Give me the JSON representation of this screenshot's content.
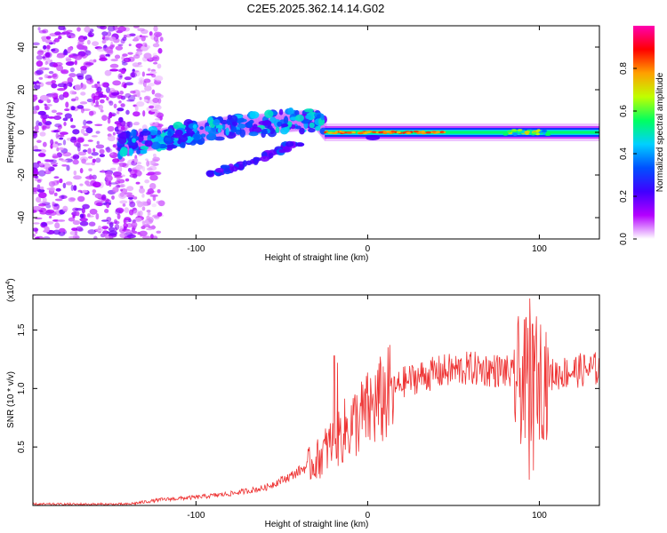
{
  "page_title": "C2E5.2025.362.14.14.G02",
  "chart_data": [
    {
      "type": "heatmap",
      "title": "C2E5.2025.362.14.14.G02",
      "xlabel": "Height of straight line (km)",
      "ylabel": "Frequency (Hz)",
      "xlim": [
        -195,
        135
      ],
      "ylim": [
        -50,
        50
      ],
      "x_ticks": [
        {
          "value": -100,
          "label": "-100"
        },
        {
          "value": 0,
          "label": "0"
        },
        {
          "value": 100,
          "label": "100"
        }
      ],
      "y_ticks": [
        {
          "value": -40,
          "label": "-40"
        },
        {
          "value": -20,
          "label": "-20"
        },
        {
          "value": 0,
          "label": "0"
        },
        {
          "value": 20,
          "label": "20"
        },
        {
          "value": 40,
          "label": "40"
        }
      ],
      "colorbar": {
        "label": "Normalized spectral amplitude",
        "range": [
          0,
          1
        ],
        "ticks": [
          {
            "value": 0.0,
            "label": "0.0"
          },
          {
            "value": 0.2,
            "label": "0.2"
          },
          {
            "value": 0.4,
            "label": "0.4"
          },
          {
            "value": 0.6,
            "label": "0.6"
          },
          {
            "value": 0.8,
            "label": "0.8"
          }
        ],
        "colors": [
          "#ffffff",
          "#b400ff",
          "#4000ff",
          "#0050ff",
          "#00d0ff",
          "#00ff60",
          "#c0ff00",
          "#ffa000",
          "#ff0000",
          "#ff00b0"
        ]
      },
      "features": {
        "noise_region_x": [
          -195,
          -125
        ],
        "main_branch": [
          [
            -145,
            -6
          ],
          [
            -120,
            -3
          ],
          [
            -100,
            0
          ],
          [
            -80,
            3
          ],
          [
            -60,
            4
          ],
          [
            -45,
            5
          ],
          [
            -30,
            6
          ],
          [
            -25,
            1
          ]
        ],
        "lower_branch": [
          [
            -95,
            -20
          ],
          [
            -75,
            -16
          ],
          [
            -60,
            -11
          ],
          [
            -48,
            -7
          ],
          [
            -38,
            -4
          ]
        ],
        "carrier_x": [
          -25,
          135
        ],
        "carrier_freq": 0
      }
    },
    {
      "type": "line",
      "xlabel": "Height of straight line (km)",
      "ylabel": "SNR (10 * v/v)",
      "y_scale_label": "(x10",
      "y_scale_exp": "4",
      "y_scale_close": ")",
      "xlim": [
        -195,
        135
      ],
      "ylim": [
        0,
        1.8
      ],
      "x_ticks": [
        {
          "value": -100,
          "label": "-100"
        },
        {
          "value": 0,
          "label": "0"
        },
        {
          "value": 100,
          "label": "100"
        }
      ],
      "y_ticks": [
        {
          "value": 0.5,
          "label": "0.5"
        },
        {
          "value": 1.0,
          "label": "1.0"
        },
        {
          "value": 1.5,
          "label": "1.5"
        }
      ],
      "series": [
        {
          "name": "SNR",
          "color": "#ee3333",
          "envelope": [
            {
              "x": -195,
              "y": 0.01
            },
            {
              "x": -140,
              "y": 0.01
            },
            {
              "x": -120,
              "y": 0.05
            },
            {
              "x": -100,
              "y": 0.07
            },
            {
              "x": -80,
              "y": 0.1
            },
            {
              "x": -60,
              "y": 0.15
            },
            {
              "x": -45,
              "y": 0.25
            },
            {
              "x": -30,
              "y": 0.38
            },
            {
              "x": -20,
              "y": 0.55
            },
            {
              "x": -10,
              "y": 0.68
            },
            {
              "x": 0,
              "y": 0.8
            },
            {
              "x": 10,
              "y": 0.92
            },
            {
              "x": 20,
              "y": 1.05
            },
            {
              "x": 30,
              "y": 1.1
            },
            {
              "x": 45,
              "y": 1.15
            },
            {
              "x": 60,
              "y": 1.17
            },
            {
              "x": 80,
              "y": 1.15
            },
            {
              "x": 90,
              "y": 1.05
            },
            {
              "x": 100,
              "y": 1.1
            },
            {
              "x": 120,
              "y": 1.15
            },
            {
              "x": 135,
              "y": 1.17
            }
          ],
          "spikes": [
            {
              "x": -19.5,
              "y": 1.28
            },
            {
              "x": -17.5,
              "y": 1.22
            },
            {
              "x": 94.5,
              "y": 1.77
            },
            {
              "x": 96,
              "y": 1.55
            },
            {
              "x": 98,
              "y": 1.45
            },
            {
              "x": 94,
              "y": 0.22
            },
            {
              "x": 96.5,
              "y": 0.3
            }
          ]
        }
      ]
    }
  ]
}
